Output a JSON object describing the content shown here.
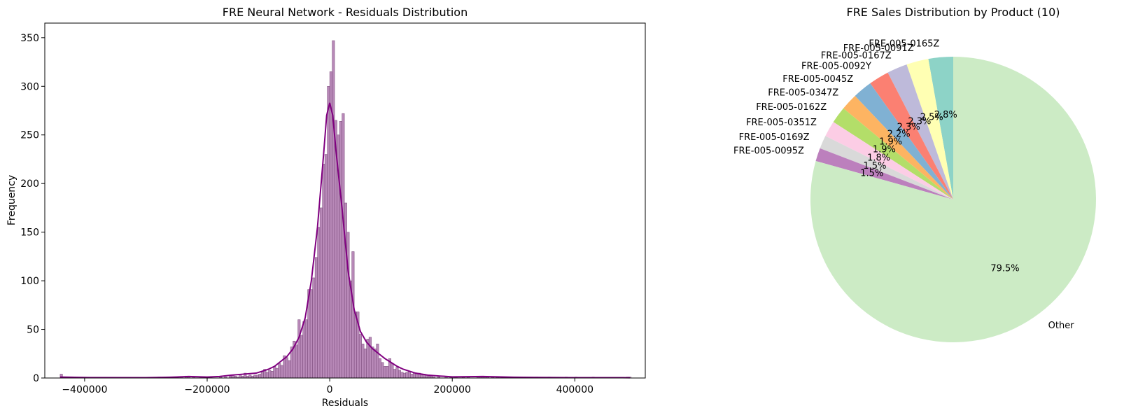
{
  "chart_data": [
    {
      "type": "histogram",
      "title": "FRE Neural Network - Residuals Distribution",
      "xlabel": "Residuals",
      "ylabel": "Frequency",
      "xlim": [
        -465000,
        515000
      ],
      "ylim": [
        0,
        365
      ],
      "xticks": [
        -400000,
        -200000,
        0,
        200000,
        400000
      ],
      "xtick_labels": [
        "−400000",
        "−200000",
        "0",
        "200000",
        "400000"
      ],
      "yticks": [
        0,
        50,
        100,
        150,
        200,
        250,
        300,
        350
      ],
      "ytick_labels": [
        "0",
        "50",
        "100",
        "150",
        "200",
        "250",
        "300",
        "350"
      ],
      "bin_width": 4000,
      "bin_start": -440000,
      "nonzero_bins": [
        [
          -440000,
          4
        ],
        [
          -436000,
          1
        ],
        [
          -280000,
          1
        ],
        [
          -244000,
          1
        ],
        [
          -236000,
          2
        ],
        [
          -232000,
          2
        ],
        [
          -224000,
          1
        ],
        [
          -212000,
          1
        ],
        [
          -196000,
          1
        ],
        [
          -180000,
          1
        ],
        [
          -172000,
          1
        ],
        [
          -164000,
          2
        ],
        [
          -160000,
          3
        ],
        [
          -156000,
          2
        ],
        [
          -152000,
          1
        ],
        [
          -148000,
          4
        ],
        [
          -144000,
          2
        ],
        [
          -140000,
          5
        ],
        [
          -136000,
          2
        ],
        [
          -132000,
          3
        ],
        [
          -128000,
          2
        ],
        [
          -124000,
          3
        ],
        [
          -120000,
          3
        ],
        [
          -116000,
          4
        ],
        [
          -112000,
          6
        ],
        [
          -108000,
          9
        ],
        [
          -104000,
          6
        ],
        [
          -100000,
          8
        ],
        [
          -96000,
          7
        ],
        [
          -92000,
          12
        ],
        [
          -88000,
          10
        ],
        [
          -84000,
          15
        ],
        [
          -80000,
          13
        ],
        [
          -76000,
          23
        ],
        [
          -72000,
          21
        ],
        [
          -68000,
          18
        ],
        [
          -64000,
          32
        ],
        [
          -60000,
          38
        ],
        [
          -56000,
          34
        ],
        [
          -52000,
          60
        ],
        [
          -48000,
          44
        ],
        [
          -44000,
          58
        ],
        [
          -40000,
          60
        ],
        [
          -36000,
          91
        ],
        [
          -32000,
          91
        ],
        [
          -28000,
          103
        ],
        [
          -24000,
          124
        ],
        [
          -20000,
          155
        ],
        [
          -16000,
          175
        ],
        [
          -12000,
          220
        ],
        [
          -8000,
          230
        ],
        [
          -4000,
          300
        ],
        [
          0,
          315
        ],
        [
          4000,
          347
        ],
        [
          8000,
          265
        ],
        [
          12000,
          250
        ],
        [
          16000,
          264
        ],
        [
          20000,
          272
        ],
        [
          24000,
          180
        ],
        [
          28000,
          150
        ],
        [
          32000,
          100
        ],
        [
          36000,
          130
        ],
        [
          40000,
          68
        ],
        [
          44000,
          68
        ],
        [
          48000,
          45
        ],
        [
          52000,
          35
        ],
        [
          56000,
          30
        ],
        [
          60000,
          40
        ],
        [
          64000,
          42
        ],
        [
          68000,
          32
        ],
        [
          72000,
          30
        ],
        [
          76000,
          35
        ],
        [
          80000,
          20
        ],
        [
          84000,
          16
        ],
        [
          88000,
          12
        ],
        [
          92000,
          12
        ],
        [
          96000,
          20
        ],
        [
          100000,
          15
        ],
        [
          104000,
          9
        ],
        [
          108000,
          11
        ],
        [
          112000,
          8
        ],
        [
          116000,
          6
        ],
        [
          120000,
          5
        ],
        [
          124000,
          6
        ],
        [
          128000,
          7
        ],
        [
          132000,
          4
        ],
        [
          136000,
          5
        ],
        [
          140000,
          4
        ],
        [
          144000,
          5
        ],
        [
          148000,
          3
        ],
        [
          152000,
          4
        ],
        [
          156000,
          3
        ],
        [
          160000,
          2
        ],
        [
          164000,
          2
        ],
        [
          168000,
          1
        ],
        [
          176000,
          1
        ],
        [
          188000,
          1
        ],
        [
          196000,
          1
        ],
        [
          204000,
          1
        ],
        [
          216000,
          1
        ],
        [
          224000,
          1
        ],
        [
          240000,
          1
        ],
        [
          244000,
          2
        ],
        [
          248000,
          2
        ],
        [
          252000,
          1
        ],
        [
          256000,
          1
        ],
        [
          264000,
          1
        ],
        [
          272000,
          1
        ],
        [
          300000,
          1
        ],
        [
          308000,
          1
        ],
        [
          336000,
          1
        ],
        [
          356000,
          1
        ],
        [
          384000,
          1
        ],
        [
          400000,
          1
        ],
        [
          428000,
          1
        ],
        [
          484000,
          1
        ],
        [
          488000,
          1
        ]
      ],
      "kde_curve": {
        "x": [
          -440000,
          -400000,
          -300000,
          -260000,
          -230000,
          -200000,
          -180000,
          -160000,
          -140000,
          -120000,
          -110000,
          -100000,
          -90000,
          -80000,
          -70000,
          -60000,
          -50000,
          -40000,
          -30000,
          -20000,
          -10000,
          -5000,
          0,
          5000,
          10000,
          20000,
          30000,
          40000,
          50000,
          60000,
          70000,
          80000,
          90000,
          100000,
          110000,
          120000,
          140000,
          160000,
          180000,
          200000,
          250000,
          300000,
          400000,
          490000
        ],
        "y": [
          1,
          0.5,
          0.4,
          0.8,
          1.5,
          1,
          1.5,
          3,
          4,
          5,
          7,
          9,
          12,
          17,
          22,
          30,
          42,
          62,
          100,
          155,
          230,
          270,
          283,
          270,
          235,
          175,
          110,
          70,
          48,
          37,
          30,
          25,
          20,
          16,
          12,
          9,
          5,
          3,
          2,
          1.2,
          1.5,
          0.8,
          0.4,
          0.3
        ]
      },
      "color": "#800080",
      "bar_fill": "#b07cb0"
    },
    {
      "type": "pie",
      "title": "FRE Sales Distribution by Product (10)",
      "start_angle_deg": 90,
      "direction": "counterclockwise",
      "slices": [
        {
          "label": "FRE-005-0165Z",
          "pct": 2.8,
          "pct_label": "2.8%",
          "color": "#8dd3c7"
        },
        {
          "label": "FRE-005-0091Z",
          "pct": 2.5,
          "pct_label": "2.5%",
          "color": "#ffffb3"
        },
        {
          "label": "FRE-005-0167Z",
          "pct": 2.3,
          "pct_label": "2.3%",
          "color": "#bebada"
        },
        {
          "label": "FRE-005-0092Y",
          "pct": 2.3,
          "pct_label": "2.3%",
          "color": "#fb8072"
        },
        {
          "label": "FRE-005-0045Z",
          "pct": 2.2,
          "pct_label": "2.2%",
          "color": "#80b1d3"
        },
        {
          "label": "FRE-005-0347Z",
          "pct": 1.9,
          "pct_label": "1.9%",
          "color": "#fdb462"
        },
        {
          "label": "FRE-005-0162Z",
          "pct": 1.9,
          "pct_label": "1.9%",
          "color": "#b3de69"
        },
        {
          "label": "FRE-005-0351Z",
          "pct": 1.8,
          "pct_label": "1.8%",
          "color": "#fccde5"
        },
        {
          "label": "FRE-005-0169Z",
          "pct": 1.5,
          "pct_label": "1.5%",
          "color": "#d9d9d9"
        },
        {
          "label": "FRE-005-0095Z",
          "pct": 1.5,
          "pct_label": "1.5%",
          "color": "#bc80bd"
        },
        {
          "label": "Other",
          "pct": 79.5,
          "pct_label": "79.5%",
          "color": "#ccebc5"
        }
      ]
    }
  ]
}
